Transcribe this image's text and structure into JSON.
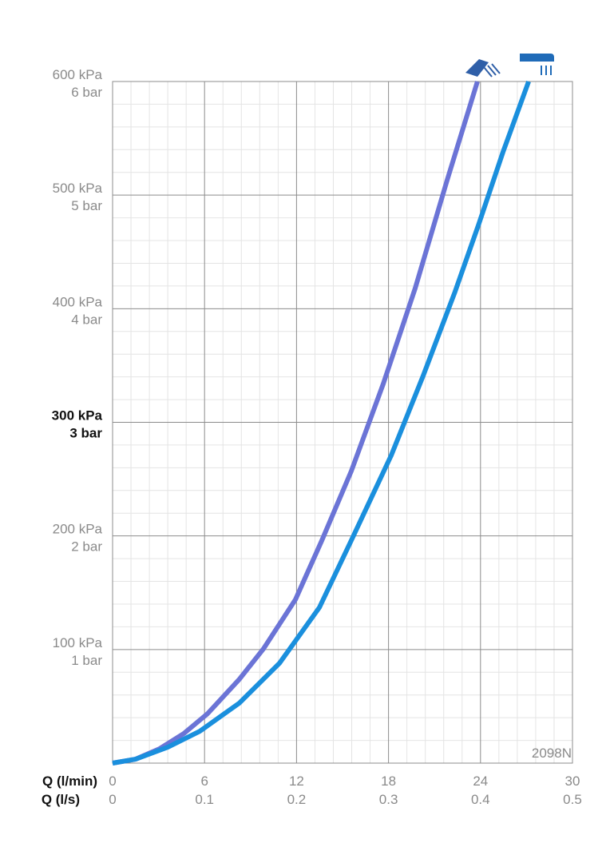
{
  "chart_data": {
    "type": "line",
    "x_label": "Q (l/min)",
    "x2_label": "Q (l/s)",
    "annotation": "2098N",
    "xlim": [
      0,
      30
    ],
    "xticks": [
      0,
      6,
      12,
      18,
      24,
      30
    ],
    "x2lim": [
      0,
      0.5
    ],
    "x2ticks": [
      0,
      0.1,
      0.2,
      0.3,
      0.4,
      0.5
    ],
    "ylim": [
      0,
      600
    ],
    "yticks": [
      {
        "value": 100,
        "label": "100 kPa"
      },
      {
        "value": 200,
        "label": "200 kPa"
      },
      {
        "value": 300,
        "label": "300 kPa"
      },
      {
        "value": 400,
        "label": "400 kPa"
      },
      {
        "value": 500,
        "label": "500 kPa"
      },
      {
        "value": 600,
        "label": "600 kPa"
      }
    ],
    "y2lim": [
      0,
      6
    ],
    "y2ticks": [
      {
        "value": 1,
        "label": "1 bar"
      },
      {
        "value": 2,
        "label": "2 bar"
      },
      {
        "value": 3,
        "label": "3 bar"
      },
      {
        "value": 4,
        "label": "4 bar"
      },
      {
        "value": 5,
        "label": "5 bar"
      },
      {
        "value": 6,
        "label": "6 bar"
      }
    ],
    "highlight_y": 300,
    "grid": true,
    "minor_divisions": 5,
    "series": [
      {
        "color": "#6b74d6",
        "x": [
          0,
          1.5,
          3.07,
          4.64,
          6.2,
          8.28,
          9.84,
          11.93,
          13.65,
          15.57,
          17.66,
          19.74,
          21.82,
          23.8
        ],
        "values": [
          0,
          3.5,
          12.7,
          26,
          43.6,
          74,
          100.6,
          144,
          196,
          257,
          334,
          418,
          513,
          600
        ]
      },
      {
        "color": "#1a8fdd",
        "x": [
          0,
          1.5,
          3.6,
          5.68,
          8.28,
          10.89,
          13.49,
          15.57,
          18.18,
          20.26,
          22.34,
          23.9,
          25.47,
          27.14
        ],
        "values": [
          0,
          3.5,
          14,
          28,
          53,
          88,
          137,
          196,
          271,
          341,
          415,
          475,
          538,
          600
        ]
      }
    ]
  }
}
